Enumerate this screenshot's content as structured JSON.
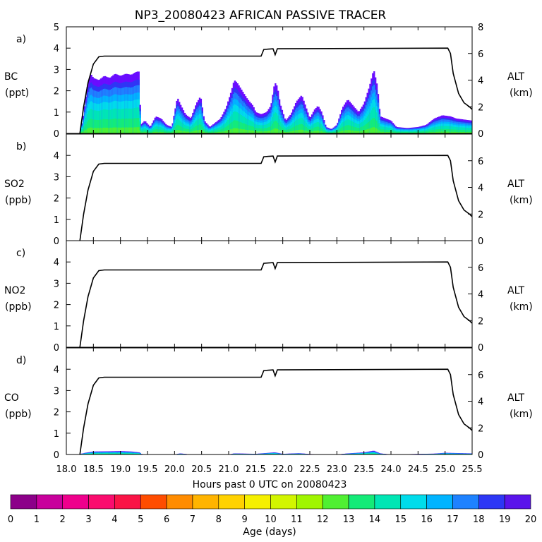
{
  "chart_data": {
    "type": "area",
    "title": "NP3_20080423 AFRICAN PASSIVE TRACER",
    "xlabel": "Hours past 0 UTC on 20080423",
    "xlim": [
      18.0,
      25.5
    ],
    "x_ticks": [
      "18.0",
      "18.5",
      "19.0",
      "19.5",
      "20.0",
      "20.5",
      "21.0",
      "21.5",
      "22.0",
      "22.5",
      "23.0",
      "23.5",
      "24.0",
      "24.5",
      "25.0",
      "25.5"
    ],
    "right_axis": {
      "label": "ALT",
      "units": "(km)",
      "ylim": [
        0,
        8
      ]
    },
    "altitude_km": [
      [
        18.25,
        0.0
      ],
      [
        18.32,
        2.0
      ],
      [
        18.4,
        3.8
      ],
      [
        18.5,
        5.2
      ],
      [
        18.6,
        5.75
      ],
      [
        18.7,
        5.8
      ],
      [
        21.6,
        5.8
      ],
      [
        21.65,
        6.3
      ],
      [
        21.82,
        6.35
      ],
      [
        21.86,
        5.9
      ],
      [
        21.9,
        6.35
      ],
      [
        25.05,
        6.4
      ],
      [
        25.1,
        6.0
      ],
      [
        25.15,
        4.5
      ],
      [
        25.25,
        3.0
      ],
      [
        25.35,
        2.3
      ],
      [
        25.45,
        2.0
      ],
      [
        25.5,
        1.8
      ]
    ],
    "panels": [
      {
        "letter": "a)",
        "species": "BC",
        "units": "(ppt)",
        "ylim": [
          0,
          5
        ],
        "y_ticks": [
          "0",
          "1",
          "2",
          "3",
          "4",
          "5"
        ],
        "alt_ticks": [
          "0",
          "2",
          "4",
          "6",
          "8"
        ],
        "tracer": [
          [
            18.25,
            0.1
          ],
          [
            18.3,
            0.6
          ],
          [
            18.35,
            1.5
          ],
          [
            18.4,
            2.4
          ],
          [
            18.45,
            2.8
          ],
          [
            18.5,
            2.6
          ],
          [
            18.6,
            2.5
          ],
          [
            18.7,
            2.7
          ],
          [
            18.8,
            2.6
          ],
          [
            18.9,
            2.8
          ],
          [
            19.0,
            2.7
          ],
          [
            19.1,
            2.8
          ],
          [
            19.2,
            2.75
          ],
          [
            19.3,
            2.9
          ],
          [
            19.35,
            2.9
          ],
          [
            19.37,
            0.4
          ],
          [
            19.45,
            0.6
          ],
          [
            19.55,
            0.3
          ],
          [
            19.65,
            0.8
          ],
          [
            19.75,
            0.7
          ],
          [
            19.85,
            0.4
          ],
          [
            19.95,
            0.3
          ],
          [
            20.05,
            1.7
          ],
          [
            20.1,
            1.4
          ],
          [
            20.2,
            0.9
          ],
          [
            20.3,
            0.7
          ],
          [
            20.4,
            1.4
          ],
          [
            20.48,
            1.75
          ],
          [
            20.55,
            0.6
          ],
          [
            20.65,
            0.3
          ],
          [
            20.75,
            0.5
          ],
          [
            20.85,
            0.7
          ],
          [
            20.95,
            1.2
          ],
          [
            21.05,
            2.0
          ],
          [
            21.1,
            2.5
          ],
          [
            21.15,
            2.4
          ],
          [
            21.25,
            2.0
          ],
          [
            21.35,
            1.6
          ],
          [
            21.45,
            1.3
          ],
          [
            21.5,
            1.0
          ],
          [
            21.6,
            0.9
          ],
          [
            21.7,
            1.0
          ],
          [
            21.78,
            1.3
          ],
          [
            21.85,
            2.4
          ],
          [
            21.9,
            2.2
          ],
          [
            21.95,
            1.4
          ],
          [
            22.05,
            0.6
          ],
          [
            22.15,
            0.9
          ],
          [
            22.25,
            1.5
          ],
          [
            22.35,
            1.8
          ],
          [
            22.42,
            1.3
          ],
          [
            22.5,
            0.7
          ],
          [
            22.58,
            1.1
          ],
          [
            22.65,
            1.3
          ],
          [
            22.72,
            1.0
          ],
          [
            22.8,
            0.3
          ],
          [
            22.9,
            0.2
          ],
          [
            23.0,
            0.4
          ],
          [
            23.1,
            1.2
          ],
          [
            23.2,
            1.6
          ],
          [
            23.3,
            1.3
          ],
          [
            23.4,
            1.0
          ],
          [
            23.5,
            1.4
          ],
          [
            23.6,
            2.2
          ],
          [
            23.68,
            3.0
          ],
          [
            23.75,
            2.2
          ],
          [
            23.8,
            0.8
          ],
          [
            23.9,
            0.7
          ],
          [
            24.0,
            0.6
          ],
          [
            24.1,
            0.3
          ],
          [
            24.3,
            0.25
          ],
          [
            24.5,
            0.3
          ],
          [
            24.65,
            0.4
          ],
          [
            24.8,
            0.7
          ],
          [
            24.95,
            0.85
          ],
          [
            25.1,
            0.8
          ],
          [
            25.2,
            0.7
          ],
          [
            25.35,
            0.65
          ],
          [
            25.5,
            0.6
          ]
        ]
      },
      {
        "letter": "b)",
        "species": "SO2",
        "units": "(ppb)",
        "ylim": [
          0,
          5
        ],
        "y_ticks": [
          "0",
          "1",
          "2",
          "3",
          "4"
        ],
        "alt_ticks": [
          "0",
          "2",
          "4",
          "6"
        ],
        "tracer": []
      },
      {
        "letter": "c)",
        "species": "NO2",
        "units": "(ppb)",
        "ylim": [
          0,
          5
        ],
        "y_ticks": [
          "0",
          "1",
          "2",
          "3",
          "4"
        ],
        "alt_ticks": [
          "0",
          "2",
          "4",
          "6"
        ],
        "tracer": []
      },
      {
        "letter": "d)",
        "species": "CO",
        "units": "(ppb)",
        "ylim": [
          0,
          5
        ],
        "y_ticks": [
          "0",
          "1",
          "2",
          "3",
          "4"
        ],
        "alt_ticks": [
          "0",
          "2",
          "4",
          "6"
        ],
        "tracer": [
          [
            18.25,
            0.02
          ],
          [
            18.35,
            0.08
          ],
          [
            18.5,
            0.14
          ],
          [
            18.8,
            0.15
          ],
          [
            19.0,
            0.16
          ],
          [
            19.2,
            0.14
          ],
          [
            19.35,
            0.1
          ],
          [
            19.4,
            0.0
          ],
          [
            20.0,
            0.0
          ],
          [
            20.1,
            0.05
          ],
          [
            20.3,
            0.0
          ],
          [
            21.0,
            0.0
          ],
          [
            21.1,
            0.05
          ],
          [
            21.5,
            0.03
          ],
          [
            21.85,
            0.1
          ],
          [
            22.0,
            0.03
          ],
          [
            22.3,
            0.06
          ],
          [
            22.5,
            0.02
          ],
          [
            23.0,
            0.0
          ],
          [
            23.2,
            0.05
          ],
          [
            23.5,
            0.1
          ],
          [
            23.68,
            0.18
          ],
          [
            23.8,
            0.05
          ],
          [
            24.0,
            0.0
          ],
          [
            24.8,
            0.04
          ],
          [
            25.0,
            0.08
          ],
          [
            25.5,
            0.05
          ]
        ]
      }
    ],
    "colorbar": {
      "label": "Age (days)",
      "ticks": [
        "0",
        "1",
        "2",
        "3",
        "4",
        "5",
        "6",
        "7",
        "8",
        "9",
        "10",
        "11",
        "12",
        "13",
        "14",
        "15",
        "16",
        "17",
        "18",
        "19",
        "20"
      ],
      "colors": [
        "#8c0089",
        "#c8009c",
        "#ef008c",
        "#fa0c6e",
        "#fa1446",
        "#ff4d00",
        "#ff8c00",
        "#ffb400",
        "#ffd200",
        "#f5f000",
        "#d2f500",
        "#a0f500",
        "#50f032",
        "#14eb78",
        "#00e6b4",
        "#00dceb",
        "#00b4ff",
        "#1e82ff",
        "#2d37f5",
        "#5a14eb"
      ]
    }
  }
}
